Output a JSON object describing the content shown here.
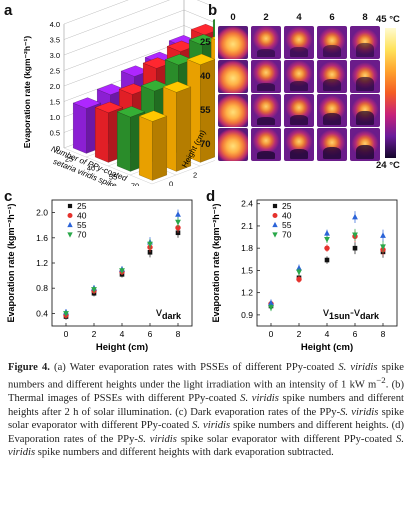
{
  "panels": {
    "a": {
      "label": "a",
      "chart_data": {
        "type": "bar3d",
        "zlabel": "Evaporation rate (kgm⁻²h⁻¹)",
        "xlabel_line1": "Number of PPy-coated",
        "xlabel_line2": "setaria viridis spike",
        "ylabel": "Height (cm)",
        "zticks": [
          "0",
          "0.5",
          "1.0",
          "1.5",
          "2.0",
          "2.5",
          "3.0",
          "3.5",
          "4.0"
        ],
        "xticks": [
          "25",
          "40",
          "55",
          "70"
        ],
        "yticks": [
          "0",
          "2",
          "4",
          "6",
          "8"
        ],
        "zlim": [
          0,
          4
        ],
        "rows": [
          {
            "name": "25",
            "color": "#8b1fd3",
            "values": [
              1.45,
              1.6,
              1.9,
              2.05,
              2.3
            ]
          },
          {
            "name": "40",
            "color": "#e11f26",
            "values": [
              1.6,
              1.9,
              2.45,
              2.7,
              2.95
            ]
          },
          {
            "name": "55",
            "color": "#2a8c2a",
            "values": [
              1.75,
              2.3,
              2.85,
              3.2,
              3.55
            ]
          },
          {
            "name": "70",
            "color": "#e8a000",
            "values": [
              1.9,
              2.55,
              3.15,
              3.55,
              3.85
            ]
          }
        ]
      }
    },
    "b": {
      "label": "b",
      "columns": [
        "0",
        "2",
        "4",
        "6",
        "8"
      ],
      "rows": [
        "25",
        "40",
        "55",
        "70"
      ],
      "colorbar_max": "45 °C",
      "colorbar_min": "24 °C"
    },
    "c": {
      "label": "c",
      "chart_data": {
        "type": "scatter",
        "xlabel": "Height (cm)",
        "ylabel": "Evaporation rate (kgm⁻²h⁻¹)",
        "annotation": "v",
        "annotation_sub": "dark",
        "xlim": [
          -1,
          9
        ],
        "ylim": [
          0.2,
          2.2
        ],
        "xticks": [
          "0",
          "2",
          "4",
          "6",
          "8"
        ],
        "yticks": [
          "0.4",
          "0.8",
          "1.2",
          "1.6",
          "2.0"
        ],
        "x": [
          0,
          2,
          4,
          6,
          8
        ],
        "legend_position": "top-left",
        "series": [
          {
            "name": "25",
            "marker": "square",
            "color": "#111111",
            "values": [
              0.35,
              0.72,
              1.02,
              1.37,
              1.68
            ]
          },
          {
            "name": "40",
            "marker": "circle",
            "color": "#e5322d",
            "values": [
              0.37,
              0.76,
              1.06,
              1.45,
              1.76
            ]
          },
          {
            "name": "55",
            "marker": "triangle-up",
            "color": "#2b63d8",
            "values": [
              0.42,
              0.8,
              1.1,
              1.53,
              1.97
            ]
          },
          {
            "name": "70",
            "marker": "triangle-down",
            "color": "#2aa84a",
            "values": [
              0.4,
              0.78,
              1.08,
              1.5,
              1.85
            ]
          }
        ]
      }
    },
    "d": {
      "label": "d",
      "chart_data": {
        "type": "scatter",
        "xlabel": "Height (cm)",
        "ylabel": "Evaporation rate (kgm⁻²h⁻¹)",
        "annotation": "v",
        "annotation_sub": "1sun",
        "annotation_mid": "-v",
        "annotation_sub2": "dark",
        "xlim": [
          -1,
          9
        ],
        "ylim": [
          0.75,
          2.45
        ],
        "xticks": [
          "0",
          "2",
          "4",
          "6",
          "8"
        ],
        "yticks": [
          "0.9",
          "1.2",
          "1.5",
          "1.8",
          "2.1",
          "2.4"
        ],
        "x": [
          0,
          2,
          4,
          6,
          8
        ],
        "legend_position": "top-left",
        "series": [
          {
            "name": "25",
            "marker": "square",
            "color": "#111111",
            "values": [
              1.02,
              1.4,
              1.64,
              1.8,
              1.75
            ]
          },
          {
            "name": "40",
            "marker": "circle",
            "color": "#e5322d",
            "values": [
              1.05,
              1.38,
              1.8,
              1.96,
              1.78
            ]
          },
          {
            "name": "55",
            "marker": "triangle-up",
            "color": "#2b63d8",
            "values": [
              1.06,
              1.53,
              2.0,
              2.22,
              1.97
            ]
          },
          {
            "name": "70",
            "marker": "triangle-down",
            "color": "#2aa84a",
            "values": [
              1.0,
              1.48,
              1.92,
              1.98,
              1.82
            ]
          }
        ]
      }
    }
  },
  "caption": {
    "fig_label": "Figure 4.",
    "t1": " (a) Water evaporation rates with PSSEs of different PPy-coated ",
    "e1": "S. viridis",
    "t2": " spike numbers and different heights under the light irradiation with an intensity of 1 kW m",
    "sup1": "−2",
    "t3": ". (b) Thermal images of PSSEs with different PPy-coated ",
    "e2": "S. viridis",
    "t4": " spike numbers and different heights after 2 h of solar illumination. (c) Dark evaporation rates of the PPy-",
    "e3": "S. viridis",
    "t5": " spike solar evaporator with different PPy-coated ",
    "e4": "S. viridis",
    "t6": " spike numbers and different heights. (d) Evaporation rates of the PPy-",
    "e5": "S. viridis",
    "t7": " spike solar evaporator with different PPy-coated ",
    "e6": "S. viridis",
    "t8": " spike numbers and different heights with dark evaporation subtracted."
  }
}
